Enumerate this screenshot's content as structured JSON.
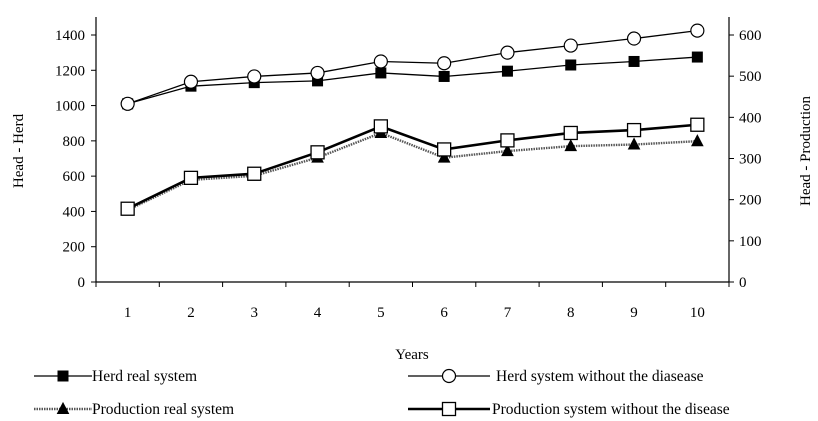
{
  "chart_data": {
    "type": "line",
    "title": "",
    "xlabel": "Years",
    "ylabel_left": "Head - Herd",
    "ylabel_right": "Head - Production",
    "categories": [
      "1",
      "2",
      "3",
      "4",
      "5",
      "6",
      "7",
      "8",
      "9",
      "10"
    ],
    "ylim_left": [
      0,
      1400
    ],
    "yticks_left": [
      0,
      200,
      400,
      600,
      800,
      1000,
      1200,
      1400
    ],
    "ylim_right": [
      0,
      600
    ],
    "yticks_right": [
      0,
      100,
      200,
      300,
      400,
      500,
      600
    ],
    "grid": false,
    "legend_position": "bottom",
    "series": [
      {
        "name": "Herd real system",
        "axis": "left",
        "marker": "filled-square",
        "line_style": "solid",
        "color": "#000000",
        "values": [
          1010,
          1110,
          1130,
          1140,
          1185,
          1165,
          1195,
          1230,
          1250,
          1275
        ]
      },
      {
        "name": "Herd system without the diasease",
        "axis": "left",
        "marker": "open-circle",
        "line_style": "solid",
        "color": "#000000",
        "values": [
          1010,
          1135,
          1165,
          1185,
          1250,
          1240,
          1300,
          1340,
          1380,
          1425
        ]
      },
      {
        "name": "Production real system",
        "axis": "right",
        "marker": "filled-triangle",
        "line_style": "dotted",
        "color": "#555555",
        "values": [
          175,
          248,
          258,
          302,
          362,
          302,
          318,
          330,
          334,
          342
        ]
      },
      {
        "name": "Production system without the disease",
        "axis": "right",
        "marker": "open-square",
        "line_style": "solid-thick",
        "color": "#000000",
        "values": [
          178,
          253,
          263,
          315,
          378,
          322,
          344,
          362,
          369,
          382
        ]
      }
    ]
  }
}
